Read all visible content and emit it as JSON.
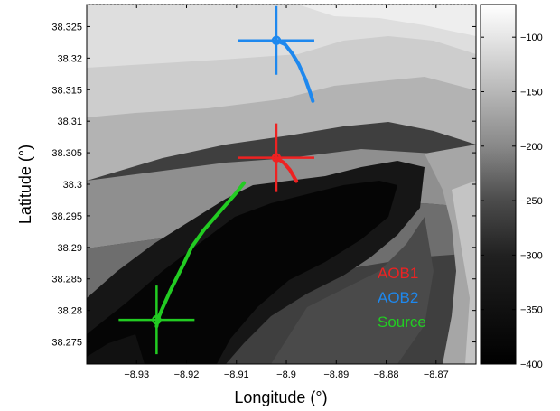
{
  "chart_data": {
    "type": "heatmap",
    "xlabel": "Longitude (°)",
    "ylabel": "Latitude (°)",
    "xlim": [
      -8.94,
      -8.862
    ],
    "ylim": [
      38.2715,
      38.3285
    ],
    "x_ticks": [
      -8.93,
      -8.92,
      -8.91,
      -8.9,
      -8.89,
      -8.88,
      -8.87
    ],
    "x_tick_labels": [
      "−8.93",
      "−8.92",
      "−8.91",
      "−8.9",
      "−8.89",
      "−8.88",
      "−8.87"
    ],
    "y_ticks": [
      38.275,
      38.28,
      38.285,
      38.29,
      38.295,
      38.3,
      38.305,
      38.31,
      38.315,
      38.32,
      38.325
    ],
    "y_tick_labels": [
      "38.275",
      "38.28",
      "38.285",
      "38.29",
      "38.295",
      "38.3",
      "38.305",
      "38.31",
      "38.315",
      "38.32",
      "38.325"
    ],
    "colorbar": {
      "range": [
        -400,
        -70
      ],
      "colormap": "gray",
      "ticks": [
        -100,
        -150,
        -200,
        -250,
        -300,
        -350,
        -400
      ],
      "tick_labels": [
        "−100",
        "−150",
        "−200",
        "−250",
        "−300",
        "−350",
        "−400"
      ]
    },
    "grid": false,
    "legend_position": "bottom-right",
    "series": [
      {
        "name": "AOB1",
        "color": "#ee2222",
        "marker_center": [
          -8.902,
          38.3042
        ],
        "track": [
          [
            -8.902,
            38.3042
          ],
          [
            -8.9005,
            38.3034
          ],
          [
            -8.8993,
            38.3023
          ],
          [
            -8.8985,
            38.3012
          ],
          [
            -8.898,
            38.3005
          ]
        ]
      },
      {
        "name": "AOB2",
        "color": "#1e88ee",
        "marker_center": [
          -8.902,
          38.3228
        ],
        "track": [
          [
            -8.902,
            38.3228
          ],
          [
            -8.9003,
            38.3222
          ],
          [
            -8.8988,
            38.3207
          ],
          [
            -8.8975,
            38.319
          ],
          [
            -8.8962,
            38.3167
          ],
          [
            -8.8952,
            38.3145
          ],
          [
            -8.8947,
            38.3132
          ]
        ]
      },
      {
        "name": "Source",
        "color": "#22cc22",
        "marker_center": [
          -8.926,
          38.2785
        ],
        "track": [
          [
            -8.926,
            38.2775
          ],
          [
            -8.9258,
            38.2785
          ],
          [
            -8.9248,
            38.2804
          ],
          [
            -8.9232,
            38.2832
          ],
          [
            -8.9205,
            38.2875
          ],
          [
            -8.919,
            38.29
          ],
          [
            -8.9165,
            38.2928
          ],
          [
            -8.9135,
            38.2955
          ],
          [
            -8.9102,
            38.2985
          ],
          [
            -8.9085,
            38.3002
          ]
        ]
      }
    ]
  }
}
